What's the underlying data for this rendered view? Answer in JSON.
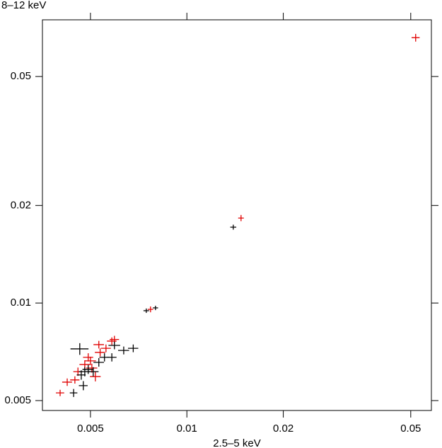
{
  "chart_data": {
    "type": "scatter",
    "y_label": "8–12 keV",
    "x_label": "2.5–5 keV",
    "log_x": true,
    "log_y": true,
    "xlim": [
      0.00354,
      0.058
    ],
    "ylim": [
      0.00466,
      0.0748
    ],
    "xticks": [
      0.005,
      0.01,
      0.02,
      0.05
    ],
    "yticks": [
      0.005,
      0.01,
      0.02,
      0.05
    ],
    "series": [
      {
        "color": "#e00000",
        "x": [
          0.0518,
          0.01476,
          0.0077,
          0.00402,
          0.00423,
          0.00447,
          0.00457,
          0.0048,
          0.00492,
          0.00505,
          0.00518,
          0.00536,
          0.00531,
          0.00559,
          0.00583,
          0.00594,
          0.005
        ],
        "values": [
          0.0659,
          0.01829,
          0.00956,
          0.00528,
          0.0057,
          0.00579,
          0.00614,
          0.00646,
          0.0068,
          0.0063,
          0.00593,
          0.00704,
          0.00744,
          0.00725,
          0.00763,
          0.00772,
          0.00663
        ],
        "xerr": [
          0.0015,
          0.0003,
          0.00015,
          0.00012,
          0.00015,
          0.00015,
          0.00015,
          0.00018,
          0.00018,
          0.0002,
          0.0002,
          0.0002,
          0.0002,
          0.0002,
          0.0002,
          0.0002,
          0.0002
        ],
        "yerr": [
          0.0018,
          0.0004,
          0.0002,
          0.00012,
          0.00015,
          0.00015,
          0.00018,
          0.0002,
          0.0002,
          0.0002,
          0.0002,
          0.0002,
          0.0002,
          0.0002,
          0.0002,
          0.0002,
          0.0002
        ]
      },
      {
        "color": "#000000",
        "x": [
          0.01396,
          0.00747,
          0.00798,
          0.00443,
          0.00475,
          0.00463,
          0.0048,
          0.00492,
          0.0051,
          0.00531,
          0.00553,
          0.00583,
          0.00594,
          0.00635,
          0.0068,
          0.00468
        ],
        "values": [
          0.01714,
          0.00947,
          0.00966,
          0.00528,
          0.00556,
          0.00722,
          0.00614,
          0.00624,
          0.00614,
          0.00656,
          0.0068,
          0.0068,
          0.0074,
          0.00714,
          0.00725,
          0.006
        ],
        "xerr": [
          0.0003,
          0.00015,
          0.00015,
          0.00012,
          0.00015,
          0.0003,
          0.0002,
          0.0002,
          0.0002,
          0.0002,
          0.0002,
          0.0002,
          0.00025,
          0.00025,
          0.00025,
          0.00015
        ],
        "yerr": [
          0.0003,
          0.00015,
          0.00015,
          0.00015,
          0.00018,
          0.0003,
          0.0002,
          0.0002,
          0.0002,
          0.0002,
          0.0002,
          0.0002,
          0.0002,
          0.0002,
          0.0002,
          0.0002
        ]
      }
    ]
  }
}
